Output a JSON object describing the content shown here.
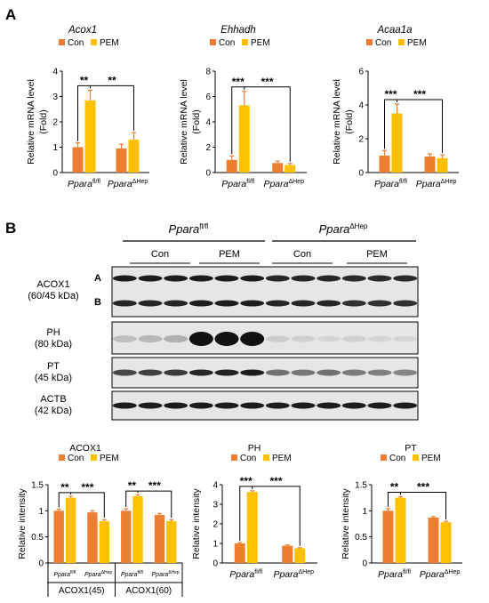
{
  "panel_a_letter": "A",
  "panel_b_letter": "B",
  "colors": {
    "con": "#ED7D31",
    "pem": "#FFC000",
    "err": "#ED7D31",
    "band": "#111111",
    "lane_bg": "#e6e6e6"
  },
  "legend": {
    "con": "Con",
    "pem": "PEM"
  },
  "genotypes": {
    "flfl": {
      "base": "Ppara",
      "sup": "fl/fl"
    },
    "hep": {
      "base": "Ppara",
      "sup": "ΔHep"
    }
  },
  "chart_data": [
    {
      "type": "bar",
      "title": "Acox1",
      "ylabel_line1": "Relative mRNA level",
      "ylabel_line2": "(Fold)",
      "ylim": [
        0,
        4
      ],
      "yticks": [
        "0",
        "1",
        "2",
        "3",
        "4"
      ],
      "grid": false,
      "legend_position": "top",
      "categories": [
        "Ppara fl/fl",
        "Ppara ΔHep"
      ],
      "series": [
        {
          "name": "Con",
          "values": [
            1.0,
            0.95
          ],
          "errors": [
            0.17,
            0.17
          ]
        },
        {
          "name": "PEM",
          "values": [
            2.85,
            1.3
          ],
          "errors": [
            0.4,
            0.28
          ]
        }
      ],
      "significance": [
        "**",
        "**"
      ]
    },
    {
      "type": "bar",
      "title": "Ehhadh",
      "ylabel_line1": "Relative mRNA level",
      "ylabel_line2": "(Fold)",
      "ylim": [
        0,
        8
      ],
      "yticks": [
        "0",
        "2",
        "4",
        "6",
        "8"
      ],
      "grid": false,
      "legend_position": "top",
      "categories": [
        "Ppara fl/fl",
        "Ppara ΔHep"
      ],
      "series": [
        {
          "name": "Con",
          "values": [
            1.0,
            0.75
          ],
          "errors": [
            0.3,
            0.15
          ]
        },
        {
          "name": "PEM",
          "values": [
            5.3,
            0.6
          ],
          "errors": [
            1.1,
            0.12
          ]
        }
      ],
      "significance": [
        "***",
        "***"
      ]
    },
    {
      "type": "bar",
      "title": "Acaa1a",
      "ylabel_line1": "Relative mRNA level",
      "ylabel_line2": "(Fold)",
      "ylim": [
        0,
        6
      ],
      "yticks": [
        "0",
        "2",
        "4",
        "6"
      ],
      "grid": false,
      "legend_position": "top",
      "categories": [
        "Ppara fl/fl",
        "Ppara ΔHep"
      ],
      "series": [
        {
          "name": "Con",
          "values": [
            1.0,
            0.95
          ],
          "errors": [
            0.3,
            0.15
          ]
        },
        {
          "name": "PEM",
          "values": [
            3.5,
            0.85
          ],
          "errors": [
            0.55,
            0.2
          ]
        }
      ],
      "significance": [
        "***",
        "***"
      ]
    },
    {
      "type": "bar",
      "title": "ACOX1",
      "ylabel_line1": "Relative intensity",
      "ylim": [
        0,
        1.5
      ],
      "yticks": [
        "0",
        "0.5",
        "1",
        "1.5"
      ],
      "grid": false,
      "legend_position": "top",
      "categories": [
        "ACOX1(45) Ppara fl/fl",
        "ACOX1(45) Ppara ΔHep",
        "ACOX1(60) Ppara fl/fl",
        "ACOX1(60) Ppara ΔHep"
      ],
      "groups": [
        "ACOX1(45)",
        "ACOX1(60)"
      ],
      "series": [
        {
          "name": "Con",
          "values": [
            1.0,
            0.97,
            1.0,
            0.92
          ],
          "errors": [
            0.03,
            0.03,
            0.04,
            0.03
          ]
        },
        {
          "name": "PEM",
          "values": [
            1.25,
            0.8,
            1.28,
            0.8
          ],
          "errors": [
            0.03,
            0.03,
            0.03,
            0.03
          ]
        }
      ],
      "significance": [
        "**",
        "***",
        "**",
        "***"
      ]
    },
    {
      "type": "bar",
      "title": "PH",
      "ylabel_line1": "Relative intensity",
      "ylim": [
        0,
        4
      ],
      "yticks": [
        "0",
        "1",
        "2",
        "3",
        "4"
      ],
      "grid": false,
      "legend_position": "top",
      "categories": [
        "Ppara fl/fl",
        "Ppara ΔHep"
      ],
      "series": [
        {
          "name": "Con",
          "values": [
            1.0,
            0.88
          ],
          "errors": [
            0.05,
            0.04
          ]
        },
        {
          "name": "PEM",
          "values": [
            3.63,
            0.75
          ],
          "errors": [
            0.06,
            0.03
          ]
        }
      ],
      "significance": [
        "***",
        "***"
      ]
    },
    {
      "type": "bar",
      "title": "PT",
      "ylabel_line1": "Relative intensity",
      "ylim": [
        0,
        1.5
      ],
      "yticks": [
        "0",
        "0.5",
        "1",
        "1.5"
      ],
      "grid": false,
      "legend_position": "top",
      "categories": [
        "Ppara fl/fl",
        "Ppara ΔHep"
      ],
      "series": [
        {
          "name": "Con",
          "values": [
            1.0,
            0.87
          ],
          "errors": [
            0.04,
            0.02
          ]
        },
        {
          "name": "PEM",
          "values": [
            1.25,
            0.78
          ],
          "errors": [
            0.02,
            0.02
          ]
        }
      ],
      "significance": [
        "**",
        "***"
      ]
    }
  ],
  "blot": {
    "group_labels": [
      {
        "base": "Ppara",
        "sup": "fl/fl"
      },
      {
        "base": "Ppara",
        "sup": "ΔHep"
      }
    ],
    "treatment_labels": [
      "Con",
      "PEM",
      "Con",
      "PEM"
    ],
    "rows": [
      {
        "name_line1": "ACOX1",
        "name_line2": "(60/45 kDa)",
        "markers": [
          "A",
          "B"
        ],
        "lanes_a": [
          0.95,
          0.95,
          0.95,
          0.95,
          0.95,
          0.95,
          0.9,
          0.9,
          0.9,
          0.88,
          0.88,
          0.88
        ],
        "lanes_b": [
          0.9,
          0.9,
          0.9,
          0.95,
          0.95,
          0.95,
          0.9,
          0.9,
          0.9,
          0.85,
          0.85,
          0.85
        ]
      },
      {
        "name_line1": "PH",
        "name_line2": "(80 kDa)",
        "lanes": [
          0.18,
          0.22,
          0.25,
          1.0,
          1.0,
          1.0,
          0.12,
          0.1,
          0.08,
          0.1,
          0.08,
          0.06
        ]
      },
      {
        "name_line1": "PT",
        "name_line2": "(45 kDa)",
        "lanes": [
          0.75,
          0.78,
          0.8,
          0.9,
          0.92,
          0.95,
          0.55,
          0.52,
          0.55,
          0.5,
          0.48,
          0.45
        ]
      },
      {
        "name_line1": "ACTB",
        "name_line2": "(42 kDa)",
        "lanes": [
          0.95,
          0.95,
          0.95,
          0.95,
          0.95,
          0.95,
          0.95,
          0.95,
          0.95,
          0.95,
          0.95,
          0.95
        ]
      }
    ]
  }
}
